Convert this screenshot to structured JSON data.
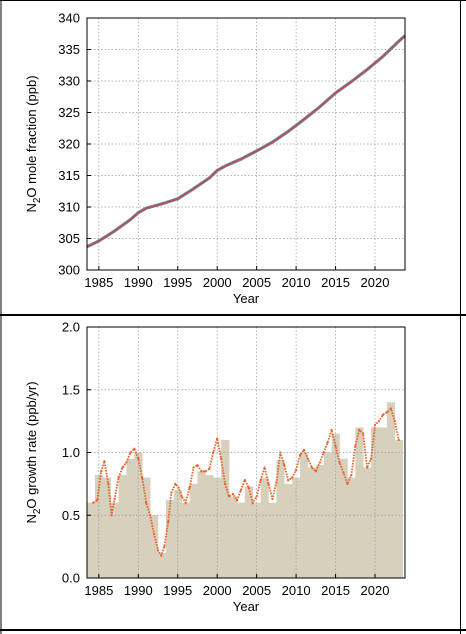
{
  "chart_data": [
    {
      "type": "line",
      "xlabel": "Year",
      "ylabel": "N2O mole fraction (ppb)",
      "ylabel_parts": {
        "pre": "N",
        "sub": "2",
        "post": "O mole fraction (ppb)"
      },
      "xlim": [
        1983.5,
        2023.8
      ],
      "ylim": [
        300,
        340
      ],
      "x_ticks": [
        1985,
        1990,
        1995,
        2000,
        2005,
        2010,
        2015,
        2020
      ],
      "y_ticks": [
        300,
        305,
        310,
        315,
        320,
        325,
        330,
        335,
        340
      ],
      "grid": true,
      "series": [
        {
          "color": "#b05050",
          "x": [
            1983.5,
            1985,
            1987,
            1989,
            1990,
            1991,
            1993,
            1995,
            1997,
            1999,
            2000,
            2001,
            2003,
            2005,
            2007,
            2009,
            2011,
            2013,
            2015,
            2017,
            2019,
            2021,
            2023,
            2023.8
          ],
          "y": [
            303.7,
            304.6,
            306.2,
            308.0,
            309.1,
            309.8,
            310.5,
            311.3,
            312.9,
            314.6,
            315.8,
            316.5,
            317.6,
            318.9,
            320.3,
            322.0,
            323.9,
            325.9,
            328.1,
            329.9,
            331.8,
            333.9,
            336.3,
            337.2
          ]
        }
      ]
    },
    {
      "type": "bar",
      "xlabel": "Year",
      "ylabel": "N2O growth rate (ppb/yr)",
      "ylabel_parts": {
        "pre": "N",
        "sub": "2",
        "post": "O growth rate (ppb/yr)"
      },
      "xlim": [
        1983.5,
        2023.8
      ],
      "ylim": [
        0.0,
        2.0
      ],
      "x_ticks": [
        1985,
        1990,
        1995,
        2000,
        2005,
        2010,
        2015,
        2020
      ],
      "y_ticks": [
        0.0,
        0.5,
        1.0,
        1.5,
        2.0
      ],
      "y_tick_labels": [
        "0.0",
        "0.5",
        "1.0",
        "1.5",
        "2.0"
      ],
      "grid": true,
      "bar_color": "#d6d0bc",
      "categories": [
        1984,
        1985,
        1986,
        1987,
        1988,
        1989,
        1990,
        1991,
        1992,
        1993,
        1994,
        1995,
        1996,
        1997,
        1998,
        1999,
        2000,
        2001,
        2002,
        2003,
        2004,
        2005,
        2006,
        2007,
        2008,
        2009,
        2010,
        2011,
        2012,
        2013,
        2014,
        2015,
        2016,
        2017,
        2018,
        2019,
        2020,
        2021,
        2022,
        2023
      ],
      "values": [
        0.6,
        0.82,
        0.8,
        0.6,
        0.82,
        0.95,
        1.0,
        0.8,
        0.5,
        0.2,
        0.62,
        0.7,
        0.6,
        0.75,
        0.85,
        0.82,
        0.8,
        1.1,
        0.65,
        0.6,
        0.73,
        0.6,
        0.8,
        0.6,
        0.94,
        0.75,
        0.8,
        1.0,
        0.88,
        0.9,
        1.0,
        1.15,
        0.95,
        0.8,
        1.2,
        0.88,
        1.2,
        1.2,
        1.4,
        1.1
      ],
      "series": [
        {
          "color": "#e8622a",
          "x": [
            1984.3,
            1984.8,
            1985.3,
            1985.7,
            1986.2,
            1986.6,
            1987.0,
            1987.5,
            1988.0,
            1988.5,
            1989.0,
            1989.5,
            1990.0,
            1990.5,
            1991.0,
            1991.5,
            1992.0,
            1992.5,
            1992.9,
            1993.3,
            1993.8,
            1994.2,
            1994.7,
            1995.1,
            1995.5,
            1996.0,
            1996.5,
            1997.0,
            1997.5,
            1998.0,
            1998.5,
            1999.0,
            1999.5,
            2000.0,
            2000.5,
            2001.0,
            2001.5,
            2002.0,
            2002.5,
            2003.0,
            2003.5,
            2004.0,
            2004.5,
            2005.0,
            2005.5,
            2006.0,
            2006.5,
            2007.0,
            2007.5,
            2008.0,
            2008.5,
            2009.0,
            2009.5,
            2010.0,
            2010.5,
            2011.0,
            2011.5,
            2012.0,
            2012.5,
            2013.0,
            2013.5,
            2014.0,
            2014.5,
            2015.0,
            2015.5,
            2016.0,
            2016.5,
            2017.0,
            2017.5,
            2018.0,
            2018.5,
            2019.0,
            2019.5,
            2020.0,
            2020.5,
            2021.0,
            2021.5,
            2022.0,
            2022.5,
            2023.0
          ],
          "y": [
            0.6,
            0.62,
            0.85,
            0.93,
            0.75,
            0.5,
            0.63,
            0.8,
            0.88,
            0.92,
            1.0,
            1.03,
            0.95,
            0.8,
            0.6,
            0.5,
            0.35,
            0.22,
            0.18,
            0.25,
            0.45,
            0.68,
            0.75,
            0.72,
            0.65,
            0.6,
            0.72,
            0.88,
            0.9,
            0.85,
            0.85,
            0.87,
            1.0,
            1.11,
            0.95,
            0.75,
            0.65,
            0.67,
            0.62,
            0.7,
            0.78,
            0.72,
            0.6,
            0.65,
            0.78,
            0.88,
            0.75,
            0.63,
            0.76,
            1.0,
            0.9,
            0.78,
            0.8,
            0.86,
            0.98,
            1.02,
            0.95,
            0.88,
            0.85,
            0.92,
            1.0,
            1.08,
            1.18,
            1.05,
            0.92,
            0.84,
            0.75,
            0.82,
            1.05,
            1.18,
            1.15,
            0.88,
            0.95,
            1.22,
            1.25,
            1.3,
            1.32,
            1.35,
            1.25,
            1.1
          ]
        }
      ]
    }
  ]
}
